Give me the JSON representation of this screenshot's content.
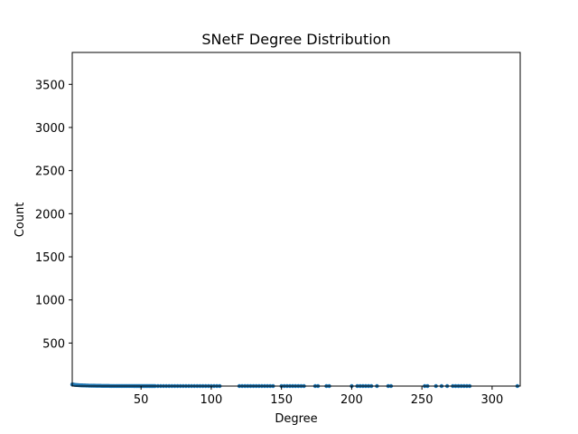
{
  "chart_data": {
    "type": "scatter",
    "title": "SNetF Degree Distribution",
    "xlabel": "Degree",
    "ylabel": "Count",
    "xlim": [
      1,
      320
    ],
    "ylim": [
      1,
      3870
    ],
    "xticks": [
      50,
      100,
      150,
      200,
      250,
      300
    ],
    "yticks": [
      500,
      1000,
      1500,
      2000,
      2500,
      3000,
      3500
    ],
    "grid": false,
    "legend": "none",
    "series": [
      {
        "color": "#1f77b4",
        "x": [
          1,
          2,
          3,
          4,
          5,
          6,
          7,
          8,
          9,
          10,
          11,
          12,
          13,
          14,
          15,
          16,
          17,
          18,
          19,
          20,
          21,
          22,
          23,
          24,
          25,
          26,
          27,
          28,
          29,
          30,
          31,
          32,
          33,
          34,
          35,
          36,
          37,
          38,
          39,
          40,
          41,
          42,
          43,
          44,
          45,
          46,
          47,
          48,
          49,
          50,
          51,
          52,
          53,
          54,
          55,
          56,
          57,
          58,
          59,
          60,
          62,
          64,
          66,
          68,
          70,
          72,
          74,
          76,
          78,
          80,
          82,
          84,
          86,
          88,
          90,
          92,
          94,
          96,
          98,
          100,
          102,
          104,
          106,
          120,
          122,
          124,
          126,
          128,
          130,
          132,
          134,
          136,
          138,
          140,
          142,
          144,
          150,
          152,
          154,
          156,
          158,
          160,
          162,
          164,
          166,
          174,
          176,
          182,
          184,
          200,
          204,
          206,
          208,
          210,
          212,
          214,
          218,
          226,
          228,
          252,
          254,
          260,
          264,
          268,
          272,
          274,
          276,
          278,
          280,
          282,
          284,
          318
        ],
        "y": [
          20,
          18,
          15,
          13,
          12,
          11,
          10,
          9,
          8,
          8,
          7,
          7,
          6,
          6,
          5,
          5,
          5,
          4,
          4,
          4,
          4,
          3,
          3,
          3,
          3,
          3,
          3,
          2,
          2,
          2,
          2,
          2,
          2,
          2,
          2,
          2,
          2,
          2,
          2,
          2,
          2,
          2,
          2,
          2,
          1,
          1,
          1,
          1,
          1,
          1,
          1,
          1,
          1,
          1,
          1,
          1,
          1,
          1,
          1,
          1,
          1,
          1,
          1,
          1,
          1,
          1,
          1,
          1,
          1,
          1,
          1,
          1,
          1,
          1,
          1,
          1,
          1,
          1,
          1,
          1,
          1,
          1,
          1,
          1,
          1,
          1,
          1,
          1,
          1,
          1,
          1,
          1,
          1,
          1,
          1,
          1,
          1,
          1,
          1,
          1,
          1,
          1,
          1,
          1,
          1,
          1,
          1,
          1,
          1,
          1,
          1,
          1,
          1,
          1,
          1,
          1,
          1,
          1,
          1,
          1,
          1,
          1,
          1,
          1,
          1,
          1,
          1,
          1,
          1,
          1,
          1,
          1
        ]
      }
    ]
  }
}
